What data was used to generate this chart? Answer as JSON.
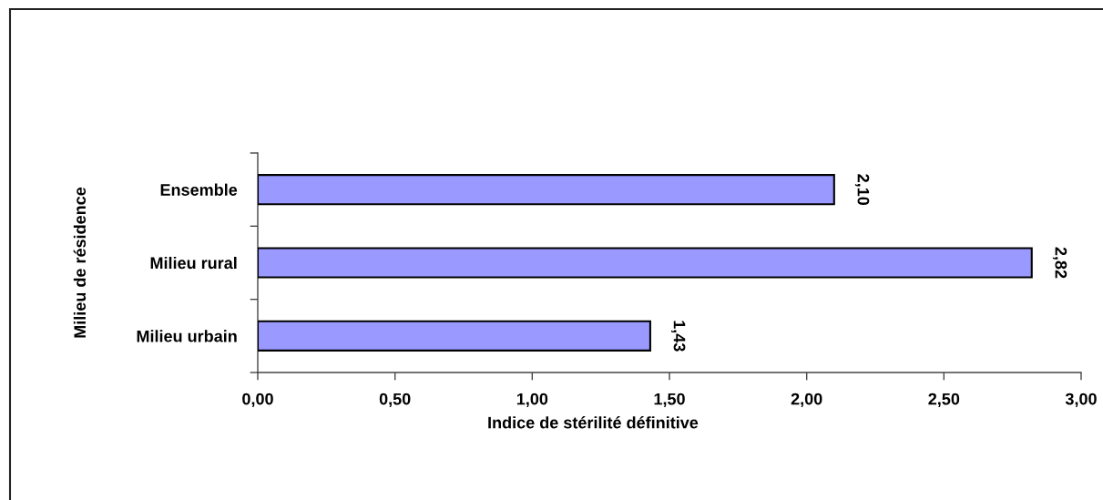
{
  "chart_data": {
    "type": "bar",
    "orientation": "horizontal",
    "categories": [
      "Ensemble",
      "Milieu rural",
      "Milieu urbain"
    ],
    "values": [
      2.1,
      2.82,
      1.43
    ],
    "color": "#9999ff",
    "value_labels": [
      "2,10",
      "2,82",
      "1,43"
    ],
    "xlim": [
      0,
      3
    ],
    "xticks": [
      {
        "value": 0,
        "label": "0,00"
      },
      {
        "value": 0.5,
        "label": "0,50"
      },
      {
        "value": 1,
        "label": "1,00"
      },
      {
        "value": 1.5,
        "label": "1,50"
      },
      {
        "value": 2,
        "label": "2,00"
      },
      {
        "value": 2.5,
        "label": "2,50"
      },
      {
        "value": 3,
        "label": "3,00"
      }
    ],
    "xlabel": "Indice de stérilité définitive",
    "ylabel": "Milieu de résidence",
    "grid": false
  }
}
